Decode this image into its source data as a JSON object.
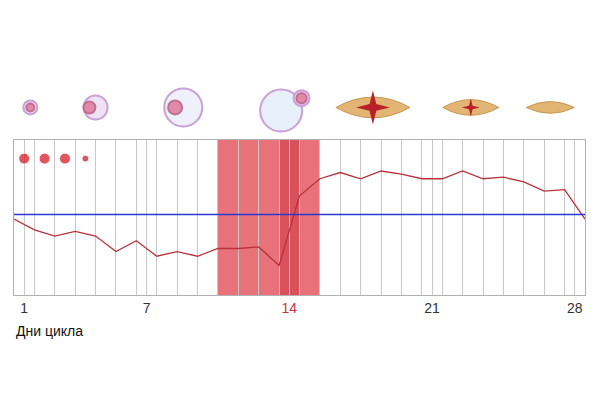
{
  "chart_data": {
    "type": "line",
    "x_label": "Дни цикла",
    "x": [
      0.5,
      1.5,
      2.5,
      3.5,
      4.5,
      5.5,
      6.5,
      7.5,
      8.5,
      9.5,
      10.5,
      11.5,
      12.5,
      13.5,
      14.5,
      15.5,
      16.5,
      17.5,
      18.5,
      19.5,
      20.5,
      21.5,
      22.5,
      23.5,
      24.5,
      25.5,
      26.5,
      27.5,
      28.5
    ],
    "values": [
      49,
      42,
      38,
      41,
      38,
      28,
      35,
      25,
      28,
      25,
      30,
      30,
      31,
      19,
      64,
      75,
      79,
      75,
      80,
      78,
      75,
      75,
      80,
      75,
      76,
      73,
      67,
      68,
      49
    ],
    "color": "#b8323a",
    "xlim": [
      0.5,
      28.5
    ],
    "xticks": [
      1,
      7,
      14,
      21,
      28
    ],
    "ylim": [
      0,
      100
    ],
    "yticks": [],
    "grid": true,
    "tick_labels": "x",
    "coverline": {
      "value": 52,
      "color": "#2a3ad0"
    },
    "fertile_window": {
      "x": [
        10.5,
        15.5
      ],
      "color": "#e9727a"
    },
    "ovulation": {
      "x": [
        13.5,
        14.5
      ],
      "color": "#d9515b"
    },
    "menstruation_days": [
      1,
      2,
      3,
      4
    ]
  }
}
